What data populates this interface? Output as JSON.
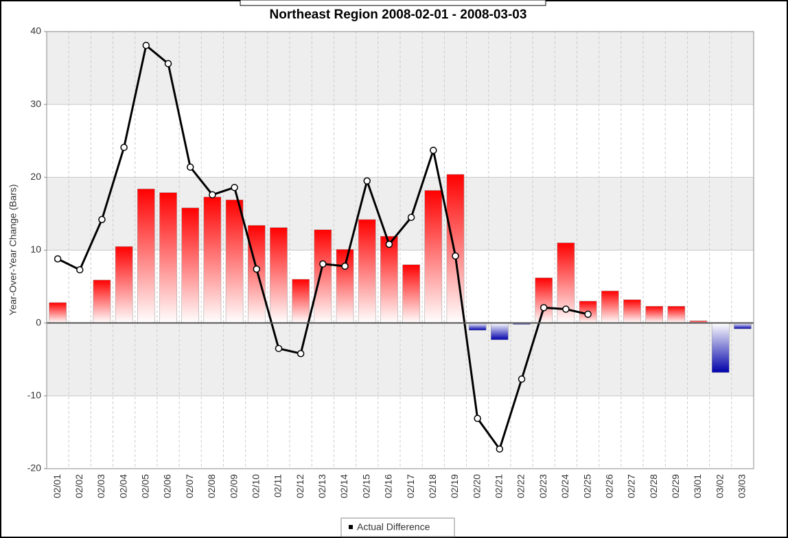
{
  "chart_data": {
    "type": "bar_line",
    "title": "Northeast Region  2008-02-01 - 2008-03-03",
    "y_label": "Year-Over-Year Change (Bars)",
    "categories": [
      "02/01",
      "02/02",
      "02/03",
      "02/04",
      "02/05",
      "02/06",
      "02/07",
      "02/08",
      "02/09",
      "02/10",
      "02/11",
      "02/12",
      "02/13",
      "02/14",
      "02/15",
      "02/16",
      "02/17",
      "02/18",
      "02/19",
      "02/20",
      "02/21",
      "02/22",
      "02/23",
      "02/24",
      "02/25",
      "02/26",
      "02/27",
      "02/28",
      "02/29",
      "03/01",
      "03/02",
      "03/03"
    ],
    "series": [
      {
        "type": "bar",
        "color": "#ff0000",
        "negative_color": "#0000aa",
        "values": [
          2.8,
          0,
          5.9,
          10.5,
          18.4,
          17.9,
          15.8,
          17.3,
          16.9,
          13.4,
          13.1,
          6.0,
          12.8,
          10.1,
          14.2,
          11.9,
          8.0,
          18.2,
          20.4,
          -1.0,
          -2.3,
          -0.2,
          6.2,
          11.0,
          3.0,
          4.4,
          3.2,
          2.3,
          2.3,
          0.3,
          -6.8,
          -0.8
        ]
      },
      {
        "type": "line",
        "name": "Actual Difference",
        "color": "#000000",
        "values": [
          8.8,
          7.3,
          14.2,
          24.1,
          38.1,
          35.6,
          21.4,
          17.6,
          18.6,
          7.4,
          -3.5,
          -4.2,
          8.1,
          7.8,
          19.5,
          10.8,
          14.5,
          23.7,
          9.2,
          -13.1,
          -17.3,
          -7.7,
          2.1,
          1.9,
          1.2,
          null,
          null,
          null,
          null,
          null,
          null,
          null
        ]
      }
    ],
    "ylim": [
      -20,
      40
    ],
    "yticks": [
      -20,
      -10,
      0,
      10,
      20,
      30,
      40
    ],
    "grid": true,
    "legend": "bottom"
  }
}
